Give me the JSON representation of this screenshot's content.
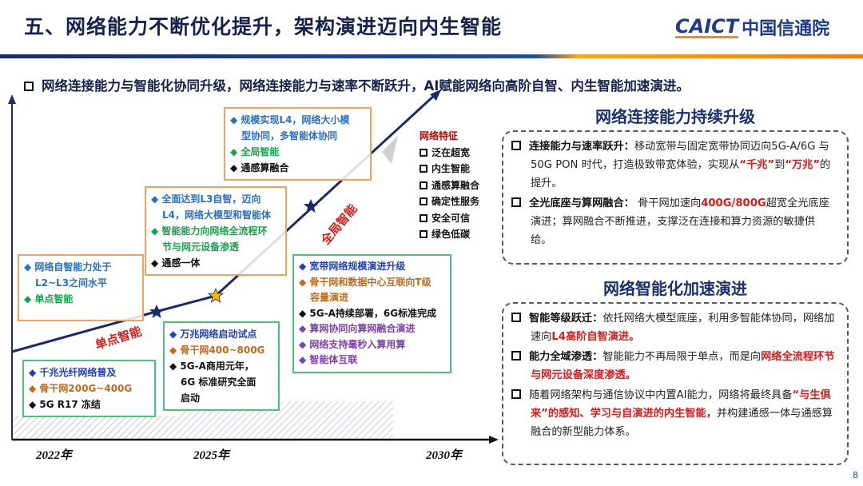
{
  "header": {
    "title": "五、网络能力不断优化提升，架构演进迈向内生智能",
    "logo_en": "CAICT",
    "logo_cn": "中国信通院"
  },
  "subtitle": "网络连接能力与智能化协同升级，网络连接能力与速率不断跃升，AI赋能网络向高阶自智、内生智能加速演进。",
  "timeline": {
    "years": [
      "2022年",
      "2025年",
      "2030年"
    ],
    "stage_labels": [
      "单点智能",
      "全局智能"
    ],
    "box1": [
      "网络自智能力处于",
      "L2~L3之间水平",
      "单点智能"
    ],
    "box2": [
      "千兆光纤网络普及",
      "骨干网200G~400G",
      "5G R17 冻结"
    ],
    "box3": [
      "全面达到L3自智，迈向",
      "L4，网络大模型和智能体",
      "智能能力向网络全流程环",
      "节与网元设备渗透",
      "通感一体"
    ],
    "box4": [
      "规模实现L4，网络大小模",
      "型协同，多智能体协同",
      "全局智能",
      "通感算融合"
    ],
    "box5": [
      "万兆网络启动试点",
      "骨干网400~800G",
      "5G-A商用元年，",
      "6G 标准研究全面",
      "启动"
    ],
    "box6": [
      "宽带网络规模演进升级",
      "骨干网和数据中心互联向T级",
      "容量演进",
      "5G-A持续部署，6G标准完成",
      "算网协同向算网融合演进",
      "网络支持毫秒入算用算",
      "智能体互联"
    ],
    "features": {
      "title": "网络特征",
      "items": [
        "泛在超宽",
        "内生智能",
        "通感算融合",
        "确定性服务",
        "安全可信",
        "绿色低碳"
      ]
    }
  },
  "right": {
    "heading1": "网络连接能力持续升级",
    "p1": {
      "bold": "连接能力与速率跃升：",
      "t1": "移动宽带与固定宽带协同迈向5G-A/6G 与 50G PON 时代，打造极致带宽体验，实现从",
      "r1": "“千兆”",
      "t2": "到",
      "r2": "“万兆”",
      "t3": "的提升。"
    },
    "p2": {
      "bold": "全光底座与算网融合：",
      "t1": " 骨干网加速向",
      "r1": "400G/800G",
      "t2": "超宽全光底座演进；算网融合不断推进，支撑泛在连接和算力资源的敏捷供给。"
    },
    "heading2": "网络智能化加速演进",
    "p3": {
      "bold": "智能等级跃迁：",
      "t1": "依托网络大模型底座，利用多智能体协同，网络加速向",
      "r1": "L4高阶自智演进。"
    },
    "p4": {
      "bold": "能力全域渗透：",
      "t1": "智能能力不再局限于单点，而是向",
      "r1": "网络全流程环节与网元设备深度渗透。"
    },
    "p5": {
      "t1": "随着网络架构与通信协议中内置AI能力，网络将最终具备",
      "r1": "“与生俱来”的感知、学习与自演进的内生智能，",
      "t2": "并构建通感一体与通感算融合的新型能力体系。"
    }
  },
  "page_number": "8",
  "colors": {
    "navy": "#16234f",
    "accent_orange": "#ee7d12",
    "highlight_red": "#e01818"
  }
}
